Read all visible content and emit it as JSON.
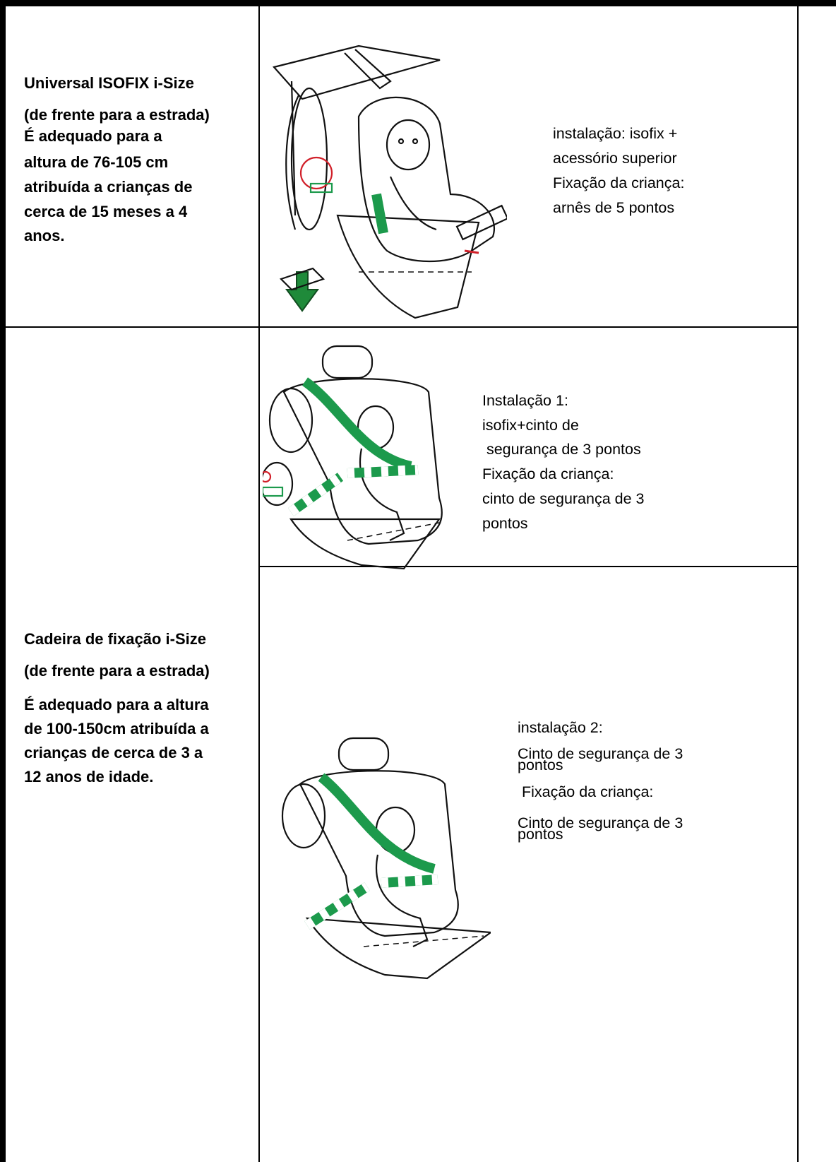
{
  "table": {
    "rows": [
      {
        "left": [
          "Universal ISOFIX i-Size",
          "(de frente para a estrada)",
          "É adequado para a",
          "altura de 76-105 cm",
          "atribuída a crianças de",
          "cerca de 15 meses a 4",
          "anos."
        ],
        "right": [
          "instalação: isofix +",
          "acessório superior",
          "Fixação da criança:",
          "arnês de 5 pontos"
        ]
      },
      {
        "left": [
          "Cadeira de fixação i-Size",
          "(de frente para a estrada)",
          "É adequado para a altura",
          "de 100-150cm atribuída a",
          "crianças de cerca de 3 a",
          "12 anos de idade."
        ],
        "options": [
          {
            "lines": [
              "Instalação 1:",
              "isofix+cinto de",
              " segurança de 3 pontos",
              "Fixação da criança:",
              "cinto de segurança de 3",
              "pontos"
            ]
          },
          {
            "lines": [
              "instalação 2:",
              "Cinto de segurança de 3",
              "pontos",
              " Fixação da criança:",
              "Cinto de segurança de 3",
              "pontos"
            ]
          }
        ]
      }
    ]
  }
}
